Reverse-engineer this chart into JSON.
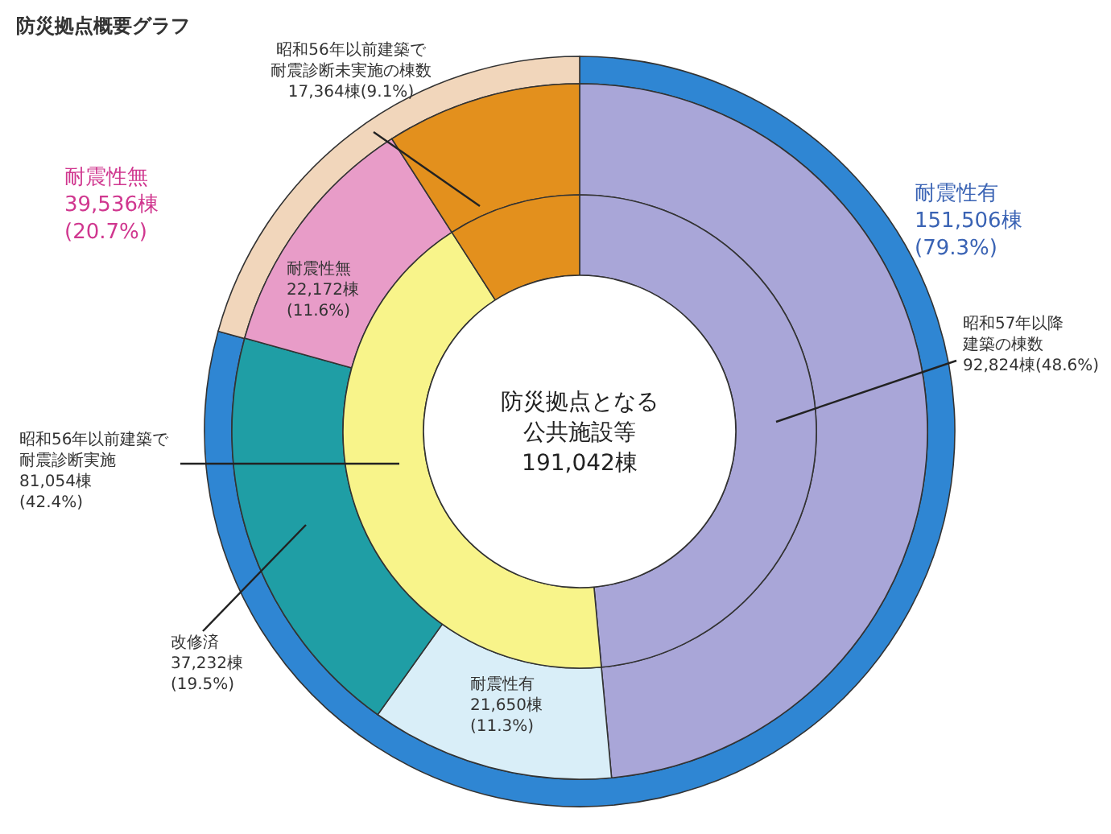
{
  "chart_data": [
    {
      "type": "donut",
      "title": "防災拠点概要グラフ",
      "categories": [
        "耐震性有",
        "耐震性無"
      ],
      "values": [
        151506,
        39536
      ],
      "colors": [
        "#2f86d3",
        "#f1d6bb"
      ],
      "value_labels": [
        "151,506棟\n(79.3%)",
        "39,536棟\n(20.7%)"
      ]
    },
    {
      "type": "donut",
      "categories": [
        "昭和57年以降建築の棟数",
        "耐震性有",
        "改修済",
        "耐震性無",
        "昭和56年以前建築で耐震診断未実施の棟数"
      ],
      "values": [
        92824,
        21650,
        37232,
        22172,
        17364
      ],
      "colors": [
        "#a9a6d8",
        "#d9eef8",
        "#1f9ea5",
        "#e89cc8",
        "#e3901d"
      ],
      "value_labels": [
        "92,824棟(48.6%)",
        "21,650棟\n(11.3%)",
        "37,232棟\n(19.5%)",
        "22,172棟\n(11.6%)",
        "17,364棟(9.1%)"
      ]
    },
    {
      "type": "donut",
      "categories": [
        null,
        "昭和56年以前建築で耐震診断実施",
        null
      ],
      "values": [
        92824,
        81054,
        17364
      ],
      "colors": [
        "#a9a6d8",
        "#f8f48a",
        "#e3901d"
      ],
      "value_labels": [
        null,
        "81,054棟\n(42.4%)",
        null
      ],
      "annotations": [
        "防災拠点となる公共施設等",
        "191,042棟"
      ]
    }
  ]
}
